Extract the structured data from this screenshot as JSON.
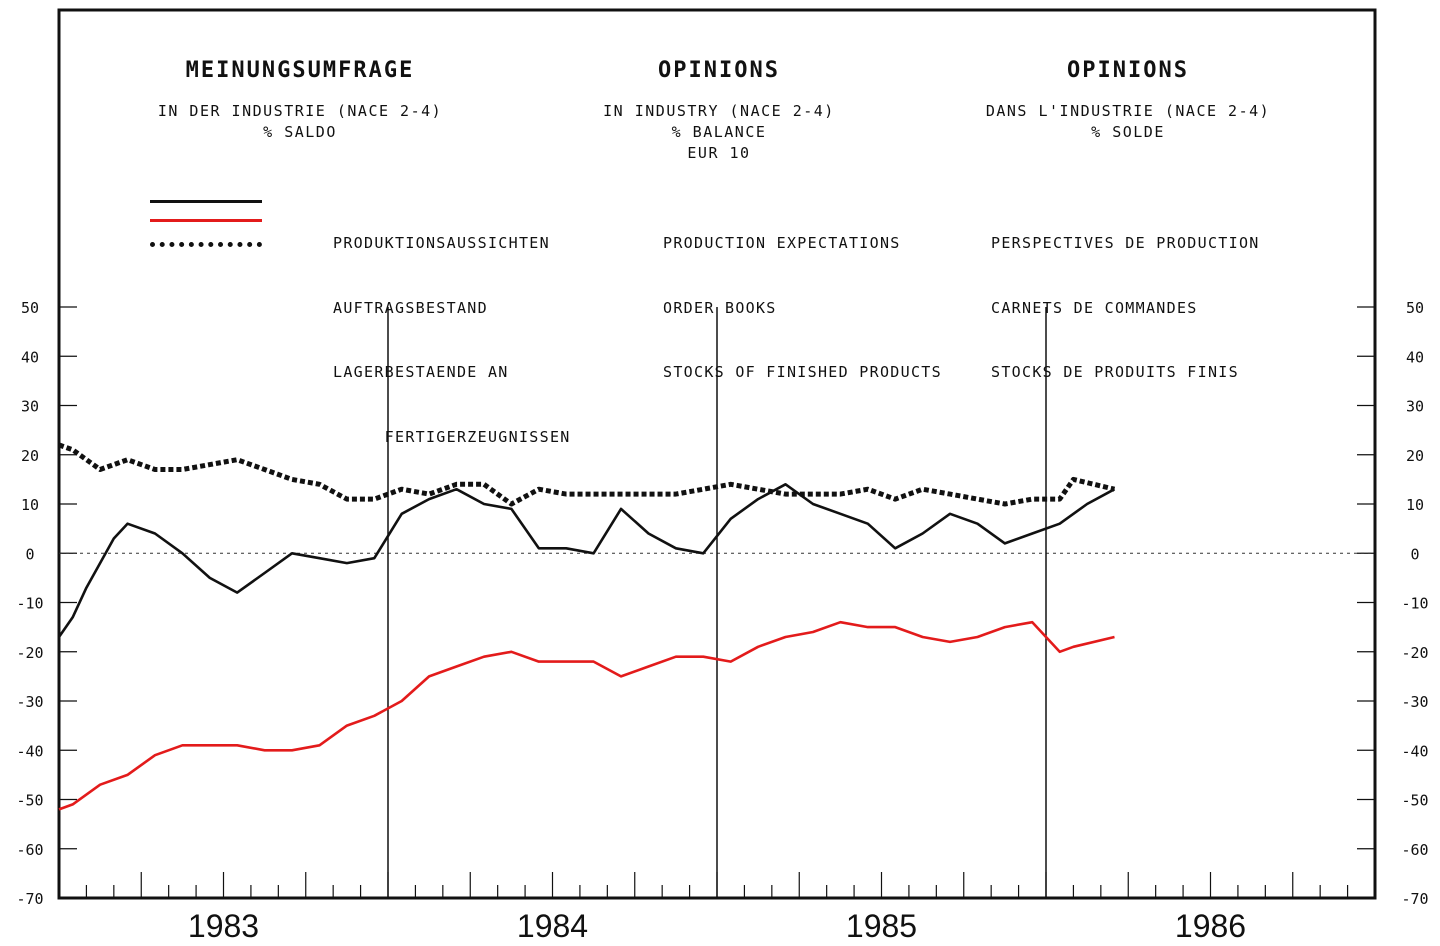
{
  "headers": [
    {
      "title": "MEINUNGSUMFRAGE",
      "lines": [
        "IN DER INDUSTRIE (NACE 2-4)",
        "% SALDO"
      ]
    },
    {
      "title": "OPINIONS",
      "lines": [
        "IN INDUSTRY (NACE 2-4)",
        "% BALANCE",
        "EUR 10"
      ]
    },
    {
      "title": "OPINIONS",
      "lines": [
        "DANS L'INDUSTRIE (NACE 2-4)",
        "% SOLDE"
      ]
    }
  ],
  "legend": {
    "de": [
      "PRODUKTIONSAUSSICHTEN",
      "AUFTRAGSBESTAND",
      "LAGERBESTAENDE AN",
      "     FERTIGERZEUGNISSEN"
    ],
    "en": [
      "PRODUCTION EXPECTATIONS",
      "ORDER BOOKS",
      "STOCKS OF FINISHED PRODUCTS"
    ],
    "fr": [
      "PERSPECTIVES DE PRODUCTION",
      "CARNETS DE COMMANDES",
      "STOCKS DE PRODUITS FINIS"
    ]
  },
  "colors": {
    "production": "#111111",
    "orders": "#e31b1b",
    "stocks": "#111111",
    "frame": "#111111"
  },
  "chart_data": {
    "type": "line",
    "x_unit": "month",
    "x_start": "1982-12",
    "xlim": [
      0,
      48
    ],
    "ylim": [
      -70,
      50
    ],
    "yticks": [
      50,
      40,
      30,
      20,
      10,
      0,
      -10,
      -20,
      -30,
      -40,
      -50,
      -60,
      -70
    ],
    "ytick_labels": [
      "50",
      "40",
      "30",
      "20",
      "10",
      "0",
      "-10",
      "-20",
      "-30",
      "-40",
      "-50",
      "-60",
      "-70"
    ],
    "year_labels": [
      {
        "label": "1983",
        "x": 6
      },
      {
        "label": "1984",
        "x": 18
      },
      {
        "label": "1985",
        "x": 30
      },
      {
        "label": "1986",
        "x": 42
      }
    ],
    "year_dividers": [
      12,
      24,
      36
    ],
    "zero_line": "dashed",
    "series": [
      {
        "key": "production",
        "style": "solid",
        "x": [
          0,
          0.5,
          1,
          2,
          2.5,
          3.5,
          4.5,
          5.5,
          6.5,
          7.5,
          8.5,
          9.5,
          10.5,
          11.5,
          12.5,
          13.5,
          14.5,
          15.5,
          16.5,
          17.5,
          18.5,
          19.5,
          20.5,
          21.5,
          22.5,
          23.5,
          24.5,
          25.5,
          26.5,
          27.5,
          28.5,
          29.5,
          30.5,
          31.5,
          32.5,
          33.5,
          34.5,
          35.5,
          36.5,
          37.5,
          38.5
        ],
        "y": [
          -17,
          -13,
          -7,
          3,
          6,
          4,
          0,
          -5,
          -8,
          -4,
          0,
          -1,
          -2,
          -1,
          8,
          11,
          13,
          10,
          9,
          1,
          1,
          0,
          9,
          4,
          1,
          0,
          7,
          11,
          14,
          10,
          8,
          6,
          1,
          4,
          8,
          6,
          2,
          4,
          6,
          10,
          13
        ]
      },
      {
        "key": "orders",
        "style": "solid",
        "x": [
          0,
          0.5,
          1.5,
          2.5,
          3.5,
          4.5,
          5.5,
          6.5,
          7.5,
          8.5,
          9.5,
          10.5,
          11.5,
          12.5,
          13.5,
          14.5,
          15.5,
          16.5,
          17.5,
          18.5,
          19.5,
          20.5,
          21.5,
          22.5,
          23.5,
          24.5,
          25.5,
          26.5,
          27.5,
          28.5,
          29.5,
          30.5,
          31.5,
          32.5,
          33.5,
          34.5,
          35.5,
          36.5,
          37,
          38.5
        ],
        "y": [
          -52,
          -51,
          -47,
          -45,
          -41,
          -39,
          -39,
          -39,
          -40,
          -40,
          -39,
          -35,
          -33,
          -30,
          -25,
          -23,
          -21,
          -20,
          -22,
          -22,
          -22,
          -25,
          -23,
          -21,
          -21,
          -22,
          -19,
          -17,
          -16,
          -14,
          -15,
          -15,
          -17,
          -18,
          -17,
          -15,
          -14,
          -20,
          -19,
          -17
        ]
      },
      {
        "key": "stocks",
        "style": "dotted",
        "x": [
          0,
          0.5,
          1.5,
          2.5,
          3.5,
          4.5,
          5.5,
          6.5,
          7.5,
          8.5,
          9.5,
          10.5,
          11.5,
          12.5,
          13.5,
          14.5,
          15.5,
          16.5,
          17.5,
          18.5,
          19.5,
          20.5,
          21.5,
          22.5,
          23.5,
          24.5,
          25.5,
          26.5,
          27.5,
          28.5,
          29.5,
          30.5,
          31.5,
          32.5,
          33.5,
          34.5,
          35.5,
          36.5,
          37,
          38.5
        ],
        "y": [
          22,
          21,
          17,
          19,
          17,
          17,
          18,
          19,
          17,
          15,
          14,
          11,
          11,
          13,
          12,
          14,
          14,
          10,
          13,
          12,
          12,
          12,
          12,
          12,
          13,
          14,
          13,
          12,
          12,
          12,
          13,
          11,
          13,
          12,
          11,
          10,
          11,
          11,
          15,
          13
        ]
      }
    ]
  }
}
